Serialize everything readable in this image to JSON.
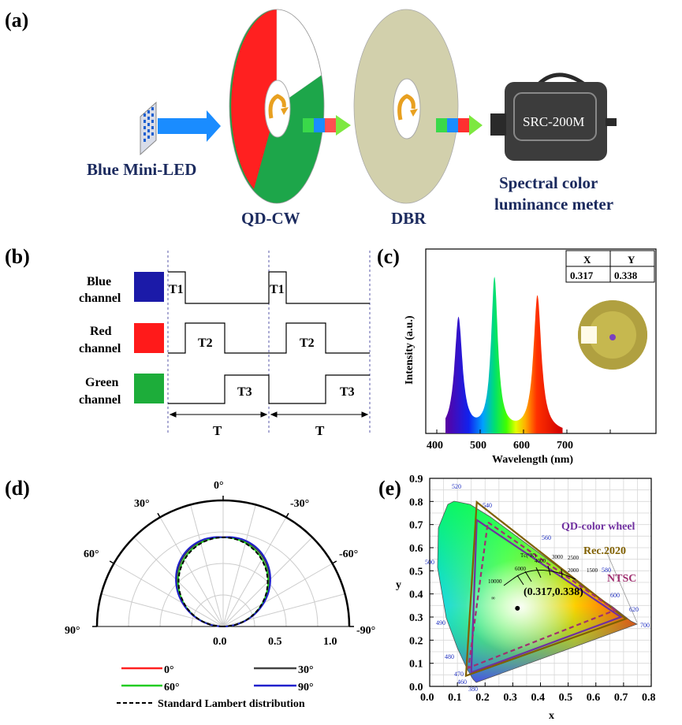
{
  "panel_a": {
    "label": "(a)",
    "led_label": "Blue Mini-LED",
    "qdcw_label": "QD-CW",
    "dbr_label": "DBR",
    "meter_model": "SRC-200M",
    "meter_label_line1": "Spectral color",
    "meter_label_line2": "luminance meter"
  },
  "panel_b": {
    "label": "(b)",
    "channels": [
      {
        "line1": "Blue",
        "line2": "channel",
        "color": "#1b1aa8",
        "pulse": "T1"
      },
      {
        "line1": "Red",
        "line2": "channel",
        "color": "#ff1a1a",
        "pulse": "T2"
      },
      {
        "line1": "Green",
        "line2": "channel",
        "color": "#1dad3a",
        "pulse": "T3"
      }
    ],
    "period_label": "T"
  },
  "panel_c": {
    "label": "(c)",
    "chart_data": {
      "type": "line",
      "xlabel": "Wavelength (nm)",
      "ylabel": "Intensity (a.u.)",
      "xticks": [
        "400",
        "500",
        "600",
        "700"
      ],
      "xlim": [
        380,
        780
      ],
      "peaks": [
        {
          "center": 450,
          "relative_height": 0.62
        },
        {
          "center": 533,
          "relative_height": 0.83
        },
        {
          "center": 632,
          "relative_height": 0.74
        }
      ],
      "table": {
        "headers": [
          "X",
          "Y"
        ],
        "values": [
          "0.317",
          "0.338"
        ]
      }
    }
  },
  "panel_d": {
    "label": "(d)",
    "chart_data": {
      "type": "polar",
      "angle_labels_left": [
        "0°",
        "30°",
        "60°",
        "90°"
      ],
      "angle_labels_right": [
        "-30°",
        "-60°",
        "-90°"
      ],
      "radial_ticks": [
        "0.0",
        "0.5",
        "1.0"
      ],
      "series": [
        {
          "name": "0°",
          "color": "#ff2020"
        },
        {
          "name": "30°",
          "color": "#444444"
        },
        {
          "name": "60°",
          "color": "#22cc22"
        },
        {
          "name": "90°",
          "color": "#2020cc"
        }
      ],
      "reference": "Standard Lambert distribution"
    }
  },
  "panel_e": {
    "label": "(e)",
    "chart_data": {
      "type": "chromaticity",
      "xlabel": "x",
      "ylabel": "y",
      "xticks": [
        "0.0",
        "0.1",
        "0.2",
        "0.3",
        "0.4",
        "0.5",
        "0.6",
        "0.7",
        "0.8"
      ],
      "yticks": [
        "0.0",
        "0.1",
        "0.2",
        "0.3",
        "0.4",
        "0.5",
        "0.6",
        "0.7",
        "0.8",
        "0.9"
      ],
      "wavelength_marks": [
        "380",
        "460",
        "470",
        "480",
        "490",
        "500",
        "520",
        "540",
        "560",
        "580",
        "600",
        "620",
        "700"
      ],
      "cct_label": "Tс(°K)",
      "cct_ticks": [
        "10000",
        "6000",
        "4000",
        "3000",
        "2500",
        "2000",
        "1500",
        "∞"
      ],
      "point_label": "(0.317,0.338)",
      "gamuts": [
        {
          "name": "QD-color wheel",
          "color": "#7030a0",
          "points": [
            [
              0.69,
              0.3
            ],
            [
              0.17,
              0.72
            ],
            [
              0.15,
              0.06
            ]
          ]
        },
        {
          "name": "Rec.2020",
          "color": "#806000",
          "points": [
            [
              0.708,
              0.292
            ],
            [
              0.17,
              0.797
            ],
            [
              0.131,
              0.046
            ]
          ]
        },
        {
          "name": "NTSC",
          "color": "#a03070",
          "points": [
            [
              0.67,
              0.33
            ],
            [
              0.21,
              0.71
            ],
            [
              0.14,
              0.08
            ]
          ]
        }
      ],
      "white_point": [
        0.317,
        0.338
      ]
    }
  }
}
